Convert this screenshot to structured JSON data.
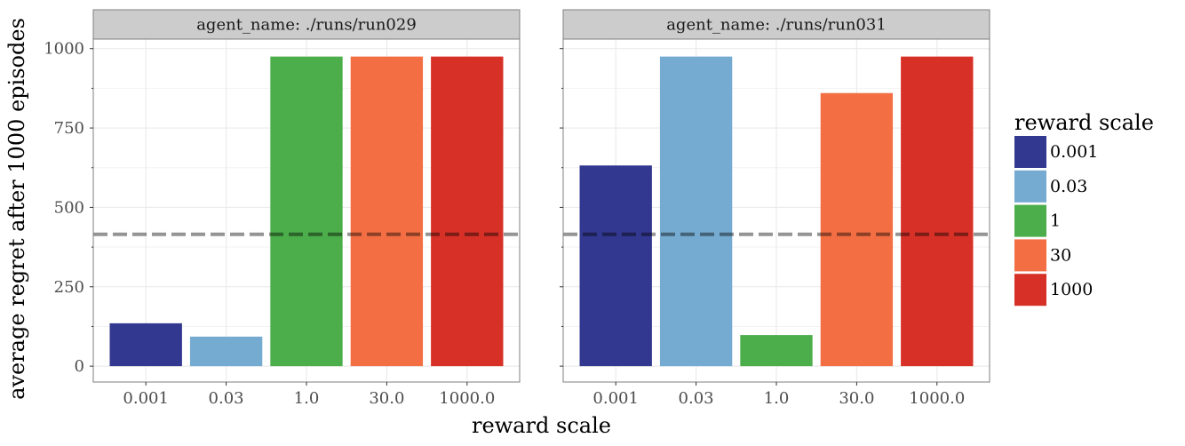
{
  "chart_data": {
    "type": "bar",
    "xlabel": "reward scale",
    "ylabel": "average regret after 1000 episodes",
    "ylim": [
      -50,
      1030
    ],
    "yticks": [
      0,
      250,
      500,
      750,
      1000
    ],
    "reference_line": {
      "value": 415,
      "style": "dashed"
    },
    "categories": [
      "0.001",
      "0.03",
      "1.0",
      "30.0",
      "1000.0"
    ],
    "facets": [
      {
        "strip": "agent_name: ./runs/run029",
        "values": [
          135,
          93,
          975,
          975,
          975
        ]
      },
      {
        "strip": "agent_name: ./runs/run031",
        "values": [
          632,
          975,
          98,
          860,
          975
        ]
      }
    ],
    "legend": {
      "title": "reward scale",
      "position": "right",
      "items": [
        {
          "label": "0.001",
          "color": "#32378f"
        },
        {
          "label": "0.03",
          "color": "#76abd1"
        },
        {
          "label": "1",
          "color": "#4cae4a"
        },
        {
          "label": "30",
          "color": "#f46e44"
        },
        {
          "label": "1000",
          "color": "#d73027"
        }
      ]
    },
    "grid": true
  }
}
